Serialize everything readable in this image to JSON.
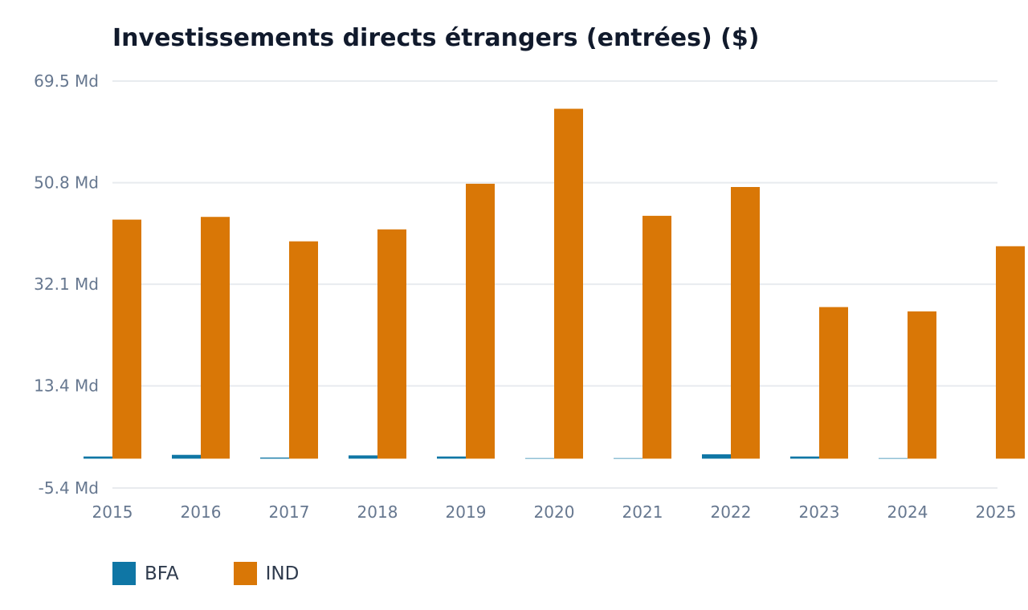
{
  "chart_data": {
    "type": "bar",
    "title": "Investissements directs étrangers (entrées) ($)",
    "xlabel": "",
    "ylabel": "",
    "categories": [
      "2015",
      "2016",
      "2017",
      "2018",
      "2019",
      "2020",
      "2021",
      "2022",
      "2023",
      "2024",
      "2025"
    ],
    "series": [
      {
        "name": "BFA",
        "color": "#0f76a5",
        "values": [
          0.4,
          0.7,
          0.2,
          0.6,
          0.4,
          0.1,
          0.1,
          0.8,
          0.4,
          0.1,
          null
        ]
      },
      {
        "name": "IND",
        "color": "#d97706",
        "values": [
          44.0,
          44.5,
          40.0,
          42.2,
          50.6,
          64.4,
          44.7,
          50.0,
          27.9,
          27.1,
          39.1
        ]
      }
    ],
    "y_ticks": [
      -5.4,
      13.4,
      32.1,
      50.8,
      69.5
    ],
    "y_tick_labels": [
      "-5.4 Md",
      "13.4 Md",
      "32.1 Md",
      "50.8 Md",
      "69.5 Md"
    ],
    "ylim": [
      -5.4,
      69.5
    ],
    "grid": true,
    "legend_position": "bottom-left"
  }
}
